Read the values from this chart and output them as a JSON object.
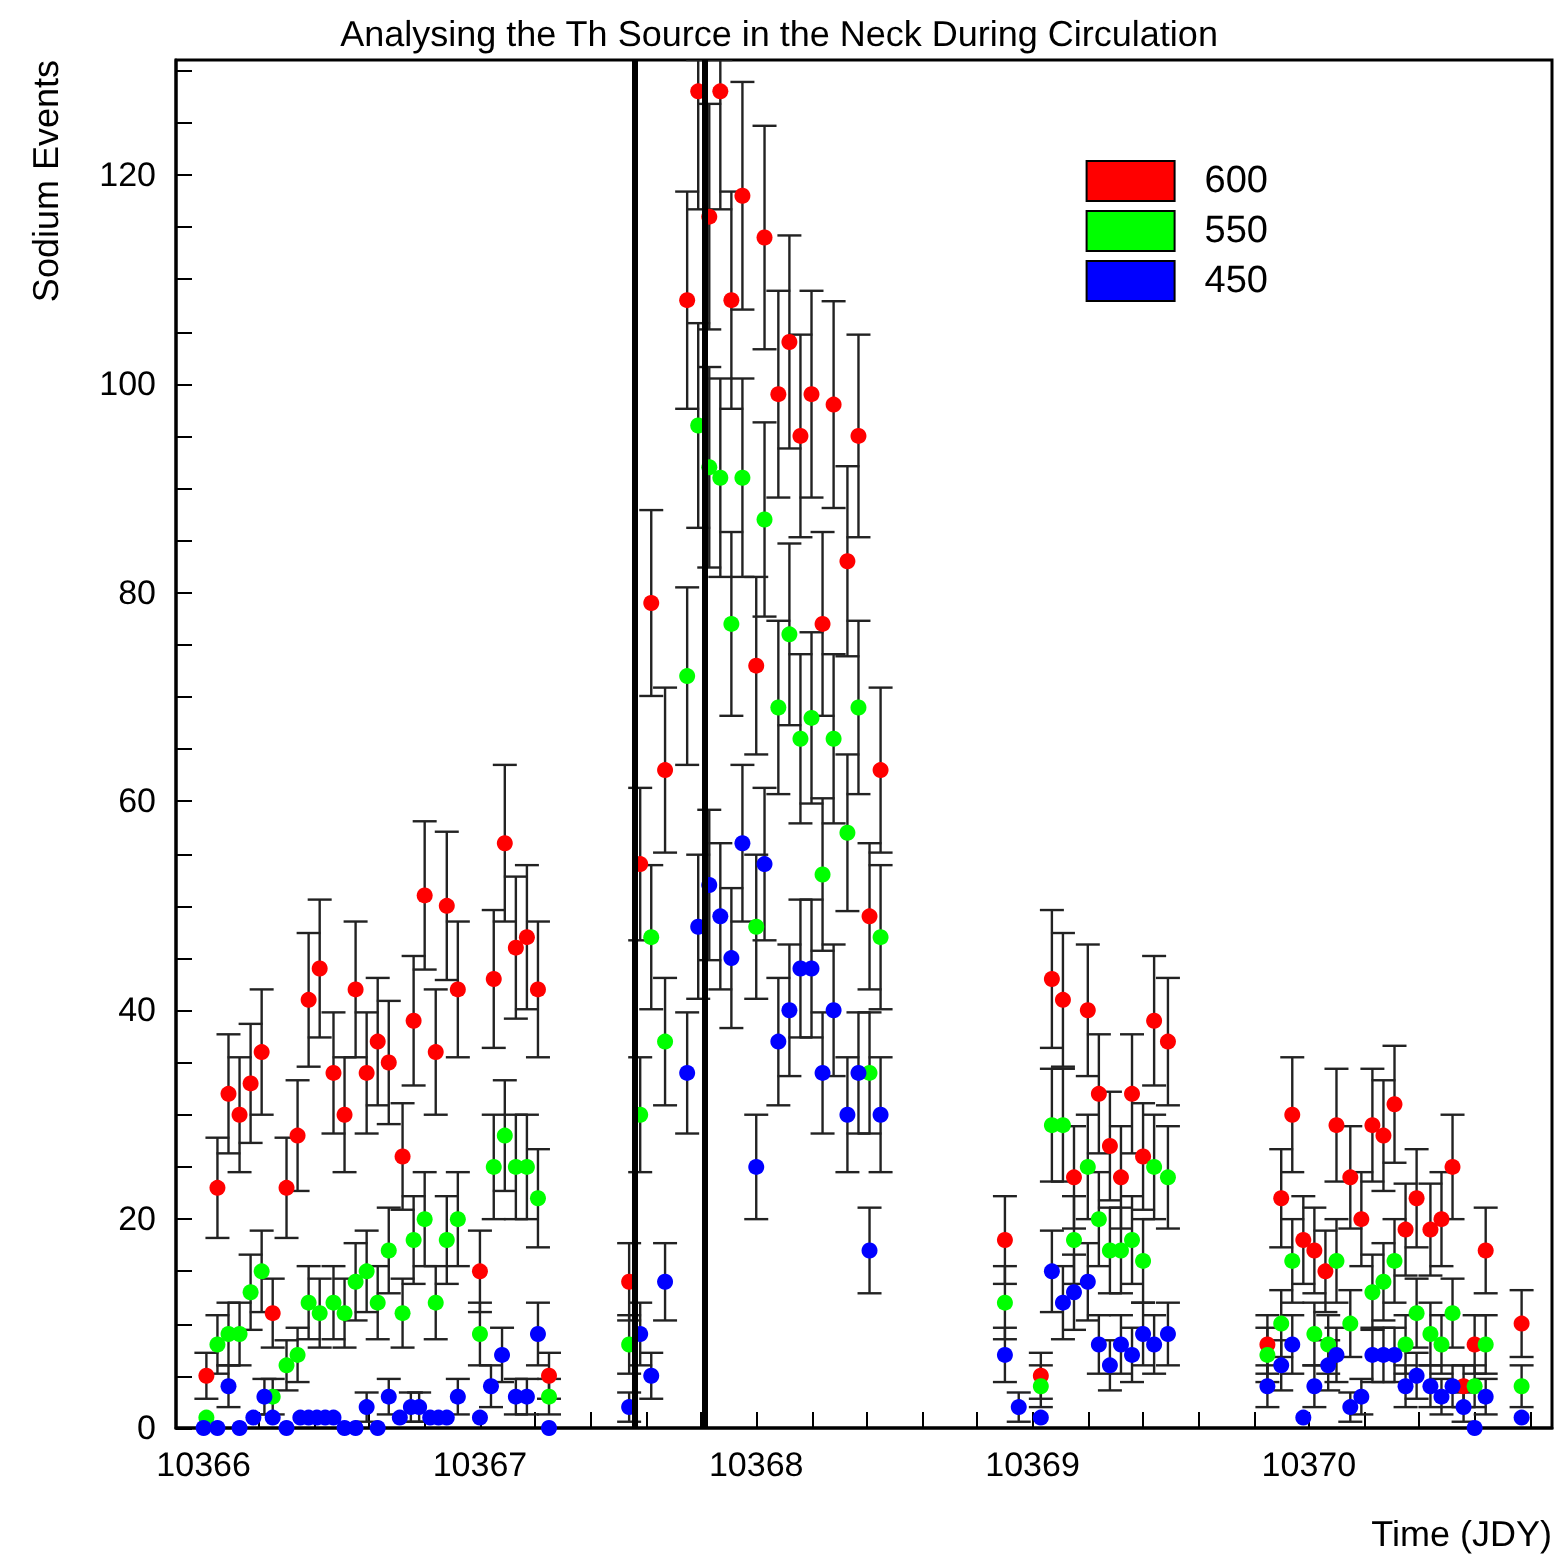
{
  "chart_data": {
    "type": "scatter",
    "title": "Analysing the Th Source in the Neck During Circulation",
    "xlabel": "Time (JDY)",
    "ylabel": "Sodium Events",
    "xlim": [
      10365.9,
      10370.88
    ],
    "ylim": [
      0,
      131
    ],
    "xticks": [
      10366,
      {
        "value": 10366.2,
        "label": null
      },
      {
        "value": 10366.4,
        "label": null
      },
      {
        "value": 10366.6,
        "label": null
      },
      {
        "value": 10366.8,
        "label": null
      },
      10367,
      {
        "value": 10367.2,
        "label": null
      },
      {
        "value": 10367.4,
        "label": null
      },
      {
        "value": 10367.6,
        "label": null
      },
      {
        "value": 10367.8,
        "label": null
      },
      10368,
      {
        "value": 10368.2,
        "label": null
      },
      {
        "value": 10368.4,
        "label": null
      },
      {
        "value": 10368.6,
        "label": null
      },
      {
        "value": 10368.8,
        "label": null
      },
      10369,
      {
        "value": 10369.2,
        "label": null
      },
      {
        "value": 10369.4,
        "label": null
      },
      {
        "value": 10369.6,
        "label": null
      },
      {
        "value": 10369.8,
        "label": null
      },
      10370,
      {
        "value": 10370.2,
        "label": null
      },
      {
        "value": 10370.4,
        "label": null
      },
      {
        "value": 10370.6,
        "label": null
      },
      {
        "value": 10370.8,
        "label": null
      }
    ],
    "yticks": [
      0,
      {
        "value": 5,
        "label": null
      },
      {
        "value": 10,
        "label": null
      },
      {
        "value": 15,
        "label": null
      },
      20,
      {
        "value": 25,
        "label": null
      },
      {
        "value": 30,
        "label": null
      },
      {
        "value": 35,
        "label": null
      },
      40,
      {
        "value": 45,
        "label": null
      },
      {
        "value": 50,
        "label": null
      },
      {
        "value": 55,
        "label": null
      },
      60,
      {
        "value": 65,
        "label": null
      },
      {
        "value": 70,
        "label": null
      },
      {
        "value": 75,
        "label": null
      },
      80,
      {
        "value": 85,
        "label": null
      },
      {
        "value": 90,
        "label": null
      },
      {
        "value": 95,
        "label": null
      },
      100,
      {
        "value": 105,
        "label": null
      },
      {
        "value": 110,
        "label": null
      },
      {
        "value": 115,
        "label": null
      },
      120,
      {
        "value": 125,
        "label": null
      },
      {
        "value": 130,
        "label": null
      }
    ],
    "legend": "top right",
    "marker": "circle",
    "ref_lines": [
      {
        "axis": "x",
        "value": 10367.56,
        "color": "#000000"
      },
      {
        "axis": "x",
        "value": 10367.81,
        "color": "#000000"
      }
    ],
    "series": [
      {
        "name": "600",
        "color": "#ff0000",
        "x": [
          10366.01,
          10366.05,
          10366.09,
          10366.13,
          10366.17,
          10366.21,
          10366.25,
          10366.3,
          10366.34,
          10366.38,
          10366.42,
          10366.47,
          10366.51,
          10366.55,
          10366.59,
          10366.63,
          10366.67,
          10366.72,
          10366.76,
          10366.8,
          10366.84,
          10366.88,
          10366.92,
          10367.0,
          10367.05,
          10367.09,
          10367.13,
          10367.17,
          10367.21,
          10367.25,
          10367.54,
          10367.58,
          10367.62,
          10367.67,
          10367.75,
          10367.79,
          10367.83,
          10367.87,
          10367.91,
          10367.95,
          10368.0,
          10368.03,
          10368.08,
          10368.12,
          10368.16,
          10368.2,
          10368.24,
          10368.28,
          10368.33,
          10368.37,
          10368.41,
          10368.45,
          10368.9,
          10369.03,
          10369.07,
          10369.11,
          10369.15,
          10369.2,
          10369.24,
          10369.28,
          10369.32,
          10369.36,
          10369.4,
          10369.44,
          10369.49,
          10369.85,
          10369.9,
          10369.94,
          10369.98,
          10370.02,
          10370.06,
          10370.1,
          10370.15,
          10370.19,
          10370.23,
          10370.27,
          10370.31,
          10370.35,
          10370.39,
          10370.44,
          10370.48,
          10370.52,
          10370.56,
          10370.6,
          10370.64,
          10370.77
        ],
        "values": [
          5,
          23,
          32,
          30,
          33,
          36,
          11,
          23,
          28,
          41,
          44,
          34,
          30,
          42,
          34,
          37,
          35,
          26,
          39,
          51,
          36,
          50,
          42,
          15,
          43,
          56,
          46,
          47,
          42,
          5,
          14,
          54,
          79,
          63,
          108,
          128,
          116,
          128,
          108,
          118,
          73,
          114,
          99,
          104,
          95,
          99,
          77,
          98,
          83,
          95,
          49,
          63,
          18,
          5,
          43,
          41,
          24,
          40,
          32,
          27,
          24,
          32,
          26,
          39,
          37,
          8,
          22,
          30,
          18,
          17,
          15,
          29,
          24,
          20,
          29,
          28,
          31,
          19,
          22,
          19,
          20,
          25,
          4,
          8,
          17,
          10
        ],
        "errors": [
          2.2,
          4.8,
          5.7,
          5.5,
          5.7,
          6,
          3.3,
          4.8,
          5.3,
          6.4,
          6.6,
          5.8,
          5.5,
          6.5,
          5.8,
          6.1,
          5.9,
          5.1,
          6.2,
          7.1,
          6,
          7.1,
          6.5,
          3.9,
          6.6,
          7.5,
          6.8,
          6.9,
          6.5,
          2.2,
          3.7,
          7.3,
          8.9,
          7.9,
          10.4,
          [
            116.7,
            131
          ],
          10.8,
          [
            116.7,
            131
          ],
          10.4,
          10.9,
          8.5,
          10.7,
          9.9,
          10.2,
          9.7,
          9.9,
          8.8,
          9.9,
          9.1,
          9.7,
          7,
          7.9,
          4.2,
          2.2,
          6.6,
          6.4,
          4.9,
          6.3,
          5.7,
          5.2,
          4.9,
          5.7,
          5.1,
          6.2,
          6.1,
          2.8,
          4.7,
          5.5,
          4.2,
          4.1,
          3.9,
          5.4,
          4.9,
          4.5,
          5.4,
          5.3,
          5.6,
          4.4,
          4.7,
          4.4,
          4.5,
          5,
          2,
          2.8,
          4.1,
          3.2
        ]
      },
      {
        "name": "550",
        "color": "#00ff00",
        "x": [
          10366.01,
          10366.05,
          10366.09,
          10366.13,
          10366.17,
          10366.21,
          10366.25,
          10366.3,
          10366.34,
          10366.38,
          10366.42,
          10366.47,
          10366.51,
          10366.55,
          10366.59,
          10366.63,
          10366.67,
          10366.72,
          10366.76,
          10366.8,
          10366.84,
          10366.88,
          10366.92,
          10367.0,
          10367.05,
          10367.09,
          10367.13,
          10367.17,
          10367.21,
          10367.25,
          10367.54,
          10367.58,
          10367.62,
          10367.67,
          10367.75,
          10367.79,
          10367.83,
          10367.87,
          10367.91,
          10367.95,
          10368.0,
          10368.03,
          10368.08,
          10368.12,
          10368.16,
          10368.2,
          10368.24,
          10368.28,
          10368.33,
          10368.37,
          10368.41,
          10368.45,
          10368.9,
          10369.03,
          10369.07,
          10369.11,
          10369.15,
          10369.2,
          10369.24,
          10369.28,
          10369.32,
          10369.36,
          10369.4,
          10369.44,
          10369.49,
          10369.85,
          10369.9,
          10369.94,
          10370.02,
          10370.07,
          10370.1,
          10370.15,
          10370.23,
          10370.27,
          10370.31,
          10370.35,
          10370.39,
          10370.44,
          10370.48,
          10370.52,
          10370.6,
          10370.64,
          10370.77
        ],
        "values": [
          1,
          8,
          9,
          9,
          13,
          15,
          3,
          6,
          7,
          12,
          11,
          12,
          11,
          14,
          15,
          12,
          17,
          11,
          18,
          20,
          12,
          18,
          20,
          9,
          25,
          28,
          25,
          25,
          22,
          3,
          8,
          30,
          47,
          37,
          72,
          96,
          92,
          91,
          77,
          91,
          48,
          87,
          69,
          76,
          66,
          68,
          53,
          66,
          57,
          69,
          34,
          47,
          12,
          4,
          29,
          29,
          18,
          25,
          20,
          17,
          17,
          18,
          16,
          25,
          24,
          7,
          10,
          16,
          9,
          8,
          16,
          10,
          13,
          14,
          16,
          8,
          11,
          9,
          8,
          11,
          4,
          8,
          4
        ],
        "errors": [
          null,
          2.8,
          3,
          3,
          3.6,
          3.9,
          1.7,
          2.4,
          2.6,
          3.5,
          3.3,
          3.5,
          3.3,
          3.7,
          3.9,
          3.5,
          4.1,
          3.3,
          4.2,
          4.5,
          3.5,
          4.2,
          4.5,
          3,
          5,
          5.3,
          5,
          5,
          4.7,
          1.7,
          2.8,
          5.5,
          6.9,
          6.1,
          8.5,
          9.8,
          9.6,
          9.5,
          8.8,
          9.5,
          6.9,
          9.3,
          8.3,
          8.7,
          8.1,
          8.2,
          7.3,
          8.1,
          7.5,
          8.3,
          5.8,
          6.9,
          3.5,
          2,
          5.4,
          5.4,
          4.2,
          5,
          4.5,
          4.1,
          4.1,
          4.2,
          4,
          5,
          4.9,
          2.6,
          3.2,
          4,
          3,
          2.8,
          4,
          3.2,
          3.6,
          3.7,
          4,
          2.8,
          3.3,
          3,
          2.8,
          3.3,
          2,
          2.8,
          2
        ]
      },
      {
        "name": "450",
        "color": "#0000ff",
        "x": [
          10366.0,
          10366.05,
          10366.09,
          10366.13,
          10366.18,
          10366.22,
          10366.25,
          10366.3,
          10366.35,
          10366.38,
          10366.41,
          10366.44,
          10366.47,
          10366.51,
          10366.55,
          10366.59,
          10366.63,
          10366.67,
          10366.71,
          10366.75,
          10366.78,
          10366.82,
          10366.85,
          10366.88,
          10366.92,
          10367.0,
          10367.04,
          10367.08,
          10367.13,
          10367.17,
          10367.21,
          10367.25,
          10367.54,
          10367.58,
          10367.62,
          10367.67,
          10367.75,
          10367.79,
          10367.83,
          10367.87,
          10367.91,
          10367.95,
          10368.0,
          10368.03,
          10368.08,
          10368.12,
          10368.16,
          10368.2,
          10368.24,
          10368.28,
          10368.33,
          10368.37,
          10368.41,
          10368.45,
          10368.9,
          10368.95,
          10369.03,
          10369.07,
          10369.11,
          10369.15,
          10369.2,
          10369.24,
          10369.28,
          10369.32,
          10369.36,
          10369.4,
          10369.44,
          10369.49,
          10369.85,
          10369.9,
          10369.94,
          10369.98,
          10370.02,
          10370.07,
          10370.1,
          10370.15,
          10370.19,
          10370.23,
          10370.27,
          10370.31,
          10370.35,
          10370.39,
          10370.44,
          10370.48,
          10370.52,
          10370.56,
          10370.6,
          10370.64,
          10370.77
        ],
        "values": [
          0,
          0,
          4,
          0,
          1,
          3,
          1,
          0,
          1,
          1,
          1,
          1,
          1,
          0,
          0,
          2,
          0,
          3,
          1,
          2,
          2,
          1,
          1,
          1,
          3,
          1,
          4,
          7,
          3,
          3,
          9,
          0,
          2,
          9,
          5,
          14,
          34,
          48,
          52,
          49,
          45,
          56,
          25,
          54,
          37,
          40,
          44,
          44,
          34,
          40,
          30,
          34,
          17,
          30,
          7,
          2,
          1,
          15,
          12,
          13,
          14,
          8,
          6,
          8,
          7,
          9,
          8,
          9,
          4,
          6,
          8,
          1,
          4,
          6,
          7,
          2,
          3,
          7,
          7,
          7,
          4,
          5,
          4,
          3,
          4,
          2,
          0,
          3,
          1
        ],
        "errors": [
          null,
          null,
          2,
          null,
          null,
          1.7,
          null,
          null,
          null,
          null,
          null,
          null,
          null,
          null,
          null,
          1.4,
          null,
          1.7,
          null,
          1.4,
          1.4,
          null,
          null,
          null,
          1.7,
          null,
          2,
          2.6,
          1.7,
          1.7,
          3,
          null,
          1.4,
          3,
          2.2,
          3.7,
          5.8,
          6.9,
          7.2,
          7,
          6.7,
          7.5,
          5,
          7.3,
          6.1,
          6.3,
          6.6,
          6.6,
          5.8,
          6.3,
          5.5,
          5.8,
          4.1,
          5.5,
          2.6,
          1.4,
          null,
          3.9,
          3.5,
          3.6,
          3.7,
          2.8,
          2.4,
          2.8,
          2.6,
          3,
          2.8,
          3,
          2,
          2.4,
          2.8,
          null,
          2,
          2.4,
          2.6,
          1.4,
          1.7,
          2.6,
          2.6,
          2.6,
          2,
          2.2,
          2,
          1.7,
          2,
          1.4,
          null,
          1.7,
          null
        ]
      }
    ]
  }
}
